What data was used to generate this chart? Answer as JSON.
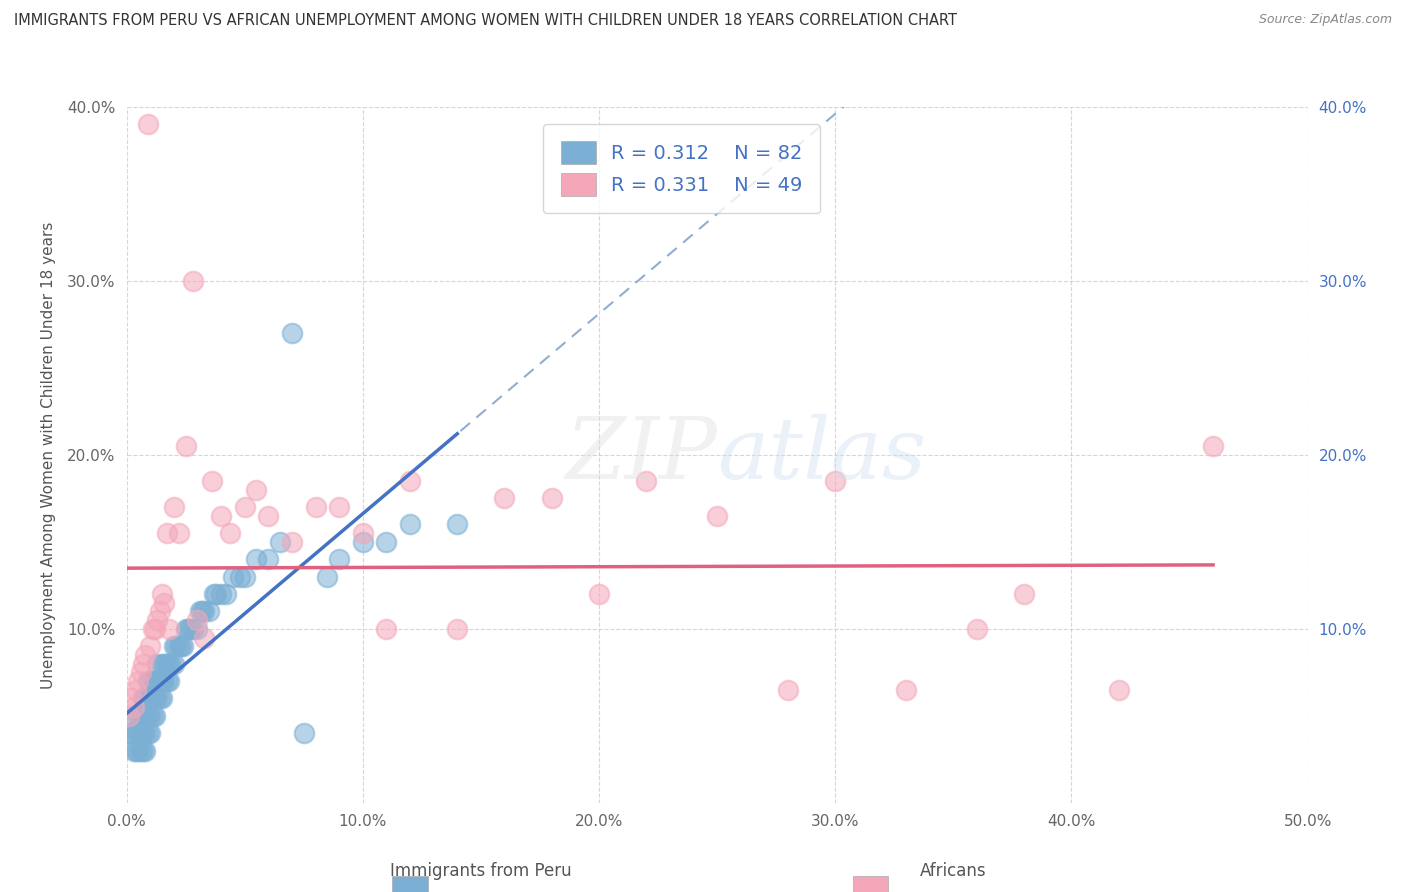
{
  "title": "IMMIGRANTS FROM PERU VS AFRICAN UNEMPLOYMENT AMONG WOMEN WITH CHILDREN UNDER 18 YEARS CORRELATION CHART",
  "source": "Source: ZipAtlas.com",
  "ylabel": "Unemployment Among Women with Children Under 18 years",
  "xlim": [
    0.0,
    0.5
  ],
  "ylim": [
    0.0,
    0.4
  ],
  "xticks": [
    0.0,
    0.1,
    0.2,
    0.3,
    0.4,
    0.5
  ],
  "yticks": [
    0.0,
    0.1,
    0.2,
    0.3,
    0.4
  ],
  "xtick_labels": [
    "0.0%",
    "10.0%",
    "20.0%",
    "30.0%",
    "40.0%",
    "50.0%"
  ],
  "ytick_labels": [
    "",
    "10.0%",
    "20.0%",
    "30.0%",
    "40.0%"
  ],
  "right_ytick_labels": [
    "",
    "10.0%",
    "20.0%",
    "30.0%",
    "40.0%"
  ],
  "legend_r1": "R = 0.312",
  "legend_n1": "N = 82",
  "legend_r2": "R = 0.331",
  "legend_n2": "N = 49",
  "color_peru": "#7BAFD4",
  "color_african": "#F4A7B9",
  "color_peru_line": "#4472C4",
  "color_african_line": "#E06080",
  "color_dashed": "#92AECE",
  "background_color": "#FFFFFF",
  "peru_x": [
    0.001,
    0.002,
    0.003,
    0.003,
    0.004,
    0.004,
    0.005,
    0.005,
    0.005,
    0.006,
    0.006,
    0.006,
    0.007,
    0.007,
    0.007,
    0.007,
    0.008,
    0.008,
    0.008,
    0.008,
    0.009,
    0.009,
    0.009,
    0.009,
    0.01,
    0.01,
    0.01,
    0.01,
    0.011,
    0.011,
    0.011,
    0.012,
    0.012,
    0.012,
    0.013,
    0.013,
    0.013,
    0.014,
    0.014,
    0.015,
    0.015,
    0.015,
    0.016,
    0.016,
    0.017,
    0.017,
    0.018,
    0.018,
    0.019,
    0.02,
    0.02,
    0.021,
    0.022,
    0.023,
    0.024,
    0.025,
    0.026,
    0.027,
    0.028,
    0.03,
    0.031,
    0.032,
    0.033,
    0.035,
    0.037,
    0.038,
    0.04,
    0.042,
    0.045,
    0.048,
    0.05,
    0.055,
    0.06,
    0.065,
    0.07,
    0.075,
    0.085,
    0.09,
    0.1,
    0.11,
    0.12,
    0.14
  ],
  "peru_y": [
    0.04,
    0.04,
    0.03,
    0.05,
    0.03,
    0.04,
    0.03,
    0.04,
    0.05,
    0.03,
    0.04,
    0.05,
    0.03,
    0.04,
    0.05,
    0.06,
    0.03,
    0.04,
    0.05,
    0.06,
    0.04,
    0.05,
    0.06,
    0.07,
    0.04,
    0.05,
    0.06,
    0.07,
    0.05,
    0.06,
    0.07,
    0.05,
    0.06,
    0.07,
    0.06,
    0.07,
    0.08,
    0.06,
    0.07,
    0.06,
    0.07,
    0.08,
    0.07,
    0.08,
    0.07,
    0.08,
    0.07,
    0.08,
    0.08,
    0.08,
    0.09,
    0.09,
    0.09,
    0.09,
    0.09,
    0.1,
    0.1,
    0.1,
    0.1,
    0.1,
    0.11,
    0.11,
    0.11,
    0.11,
    0.12,
    0.12,
    0.12,
    0.12,
    0.13,
    0.13,
    0.13,
    0.14,
    0.14,
    0.15,
    0.27,
    0.04,
    0.13,
    0.14,
    0.15,
    0.15,
    0.16,
    0.16
  ],
  "african_x": [
    0.001,
    0.002,
    0.003,
    0.004,
    0.005,
    0.006,
    0.007,
    0.008,
    0.009,
    0.01,
    0.011,
    0.012,
    0.013,
    0.014,
    0.015,
    0.016,
    0.017,
    0.018,
    0.02,
    0.022,
    0.025,
    0.028,
    0.03,
    0.033,
    0.036,
    0.04,
    0.044,
    0.05,
    0.055,
    0.06,
    0.07,
    0.08,
    0.09,
    0.1,
    0.11,
    0.12,
    0.14,
    0.16,
    0.18,
    0.2,
    0.22,
    0.25,
    0.28,
    0.3,
    0.33,
    0.36,
    0.38,
    0.42,
    0.46
  ],
  "african_y": [
    0.05,
    0.06,
    0.055,
    0.065,
    0.07,
    0.075,
    0.08,
    0.085,
    0.39,
    0.09,
    0.1,
    0.1,
    0.105,
    0.11,
    0.12,
    0.115,
    0.155,
    0.1,
    0.17,
    0.155,
    0.205,
    0.3,
    0.105,
    0.095,
    0.185,
    0.165,
    0.155,
    0.17,
    0.18,
    0.165,
    0.15,
    0.17,
    0.17,
    0.155,
    0.1,
    0.185,
    0.1,
    0.175,
    0.175,
    0.12,
    0.185,
    0.165,
    0.065,
    0.185,
    0.065,
    0.1,
    0.12,
    0.065,
    0.205
  ]
}
